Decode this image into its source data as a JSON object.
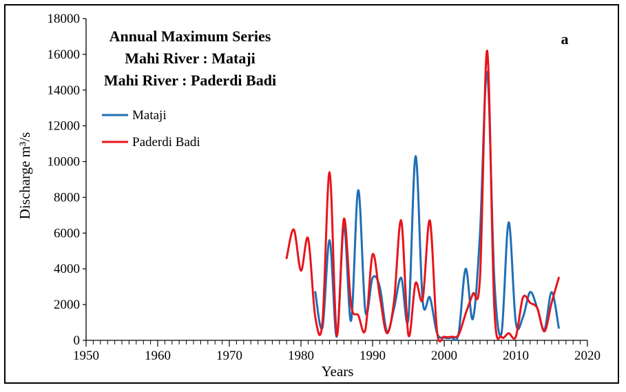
{
  "chart_data": {
    "type": "line",
    "title_lines": [
      "Annual Maximum Series",
      "Mahi River : Mataji",
      "Mahi River : Paderdi Badi"
    ],
    "panel_label": "a",
    "xlabel": "Years",
    "ylabel": "Discharge m³/s",
    "xlim": [
      1950,
      2020
    ],
    "ylim": [
      0,
      18000
    ],
    "x_ticks": [
      1950,
      1960,
      1970,
      1980,
      1990,
      2000,
      2010,
      2020
    ],
    "y_ticks": [
      0,
      2000,
      4000,
      6000,
      8000,
      10000,
      12000,
      14000,
      16000,
      18000
    ],
    "x_minor_step": 1,
    "grid": false,
    "legend_position": "top-left",
    "series": [
      {
        "name": "Mataji",
        "color": "#1f6eb4",
        "x": [
          1982,
          1983,
          1984,
          1985,
          1986,
          1987,
          1988,
          1989,
          1990,
          1991,
          1992,
          1993,
          1994,
          1995,
          1996,
          1997,
          1998,
          1999,
          2000,
          2001,
          2002,
          2003,
          2004,
          2005,
          2006,
          2007,
          2008,
          2009,
          2010,
          2011,
          2012,
          2013,
          2014,
          2015,
          2016
        ],
        "y": [
          2700,
          700,
          5600,
          200,
          6400,
          1100,
          8400,
          1600,
          3500,
          3000,
          500,
          1800,
          3500,
          1200,
          10300,
          2200,
          2400,
          400,
          150,
          150,
          350,
          4000,
          1200,
          6000,
          15000,
          3400,
          400,
          6600,
          1000,
          1300,
          2700,
          1800,
          600,
          2700,
          700
        ]
      },
      {
        "name": "Paderdi Badi",
        "color": "#e8141b",
        "x": [
          1978,
          1979,
          1980,
          1981,
          1982,
          1983,
          1984,
          1985,
          1986,
          1987,
          1988,
          1989,
          1990,
          1991,
          1992,
          1993,
          1994,
          1995,
          1996,
          1997,
          1998,
          1999,
          2000,
          2001,
          2002,
          2003,
          2004,
          2005,
          2006,
          2007,
          2008,
          2009,
          2010,
          2011,
          2012,
          2013,
          2014,
          2015,
          2016
        ],
        "y": [
          4600,
          6200,
          3900,
          5700,
          1300,
          1000,
          9400,
          300,
          6800,
          2000,
          1400,
          600,
          4800,
          2500,
          400,
          2200,
          6700,
          300,
          3200,
          2300,
          6700,
          500,
          200,
          200,
          300,
          1500,
          2600,
          3500,
          16200,
          1800,
          200,
          400,
          200,
          2400,
          2100,
          1800,
          500,
          2100,
          3500
        ]
      }
    ]
  }
}
